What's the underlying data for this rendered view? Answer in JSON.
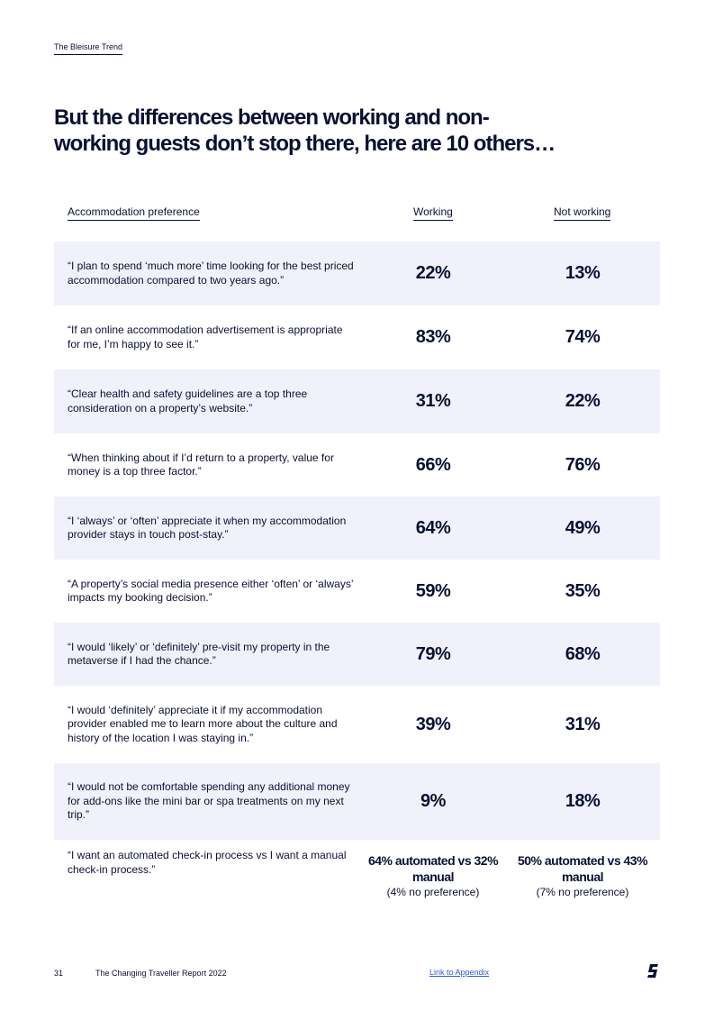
{
  "header": {
    "running_title": "The Bleisure Trend"
  },
  "title": "But the differences between working and non-working guests don’t stop there, here are 10 others…",
  "table": {
    "columns": {
      "preference": "Accommodation preference",
      "working": "Working",
      "not_working": "Not working"
    },
    "rows": [
      {
        "quote": "“I plan to spend ‘much more’ time looking for the best priced accommodation compared to two years ago.”",
        "working": "22%",
        "not_working": "13%"
      },
      {
        "quote": "“If an online accommodation advertisement is appropriate for me, I’m happy to see it.”",
        "working": "83%",
        "not_working": "74%"
      },
      {
        "quote": "“Clear health and safety guidelines are a top three consideration on a property’s website.”",
        "working": "31%",
        "not_working": "22%"
      },
      {
        "quote": "“When thinking about if I’d return to a property, value for money is a top three factor.”",
        "working": "66%",
        "not_working": "76%"
      },
      {
        "quote": "“I ‘always’ or ‘often’ appreciate it when my accommodation provider stays in touch post-stay.”",
        "working": "64%",
        "not_working": "49%"
      },
      {
        "quote": "“A property’s social media presence either ‘often’ or ‘always’ impacts my booking decision.”",
        "working": "59%",
        "not_working": "35%"
      },
      {
        "quote": "“I would ‘likely’ or ‘definitely’ pre-visit my property in the metaverse if I had the chance.”",
        "working": "79%",
        "not_working": "68%"
      },
      {
        "quote": "“I would ‘definitely’ appreciate it if my accommodation provider enabled me to learn more about the culture and history of the location I was staying in.”",
        "working": "39%",
        "not_working": "31%"
      },
      {
        "quote": "“I would not be comfortable spending any additional money for add-ons like the mini bar or spa treatments on my next trip.”",
        "working": "9%",
        "not_working": "18%"
      }
    ],
    "last_row": {
      "quote": "“I want an automated check-in process vs I want a manual check-in process.”",
      "working_main": "64% automated vs 32% manual",
      "working_sub": "(4% no preference)",
      "not_working_main": "50% automated vs 43% manual",
      "not_working_sub": "(7% no preference)"
    }
  },
  "footer": {
    "page_number": "31",
    "report_title": "The Changing Traveller Report 2022",
    "appendix_link": "Link to Appendix"
  },
  "colors": {
    "navy": "#0b1033",
    "row_shade": "#f1f1fc",
    "link": "#2f5bea"
  }
}
